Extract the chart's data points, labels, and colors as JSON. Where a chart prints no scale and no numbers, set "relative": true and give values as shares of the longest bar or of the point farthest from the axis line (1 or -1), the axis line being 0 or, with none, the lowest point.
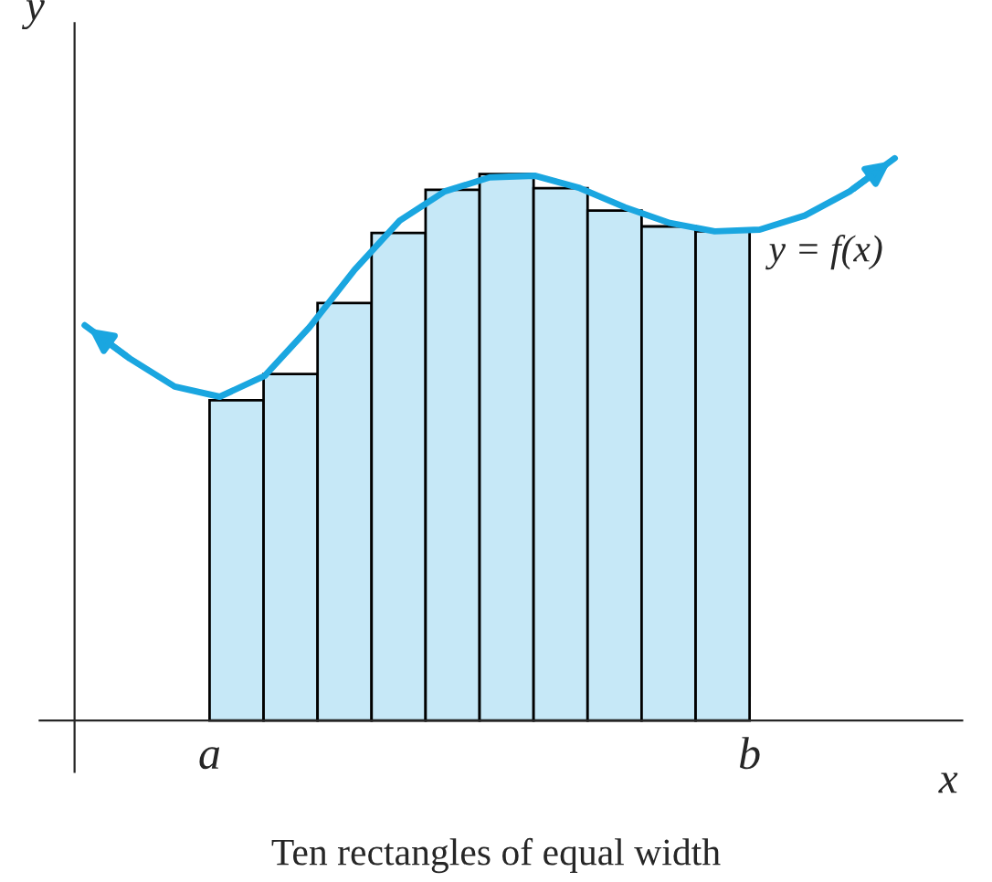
{
  "chart_data": [
    {
      "type": "bar",
      "relative": true,
      "title": "Ten rectangles of equal width",
      "xlabel": "x",
      "ylabel": "y",
      "color": "#c6e8f7",
      "categories": [
        null,
        null,
        null,
        null,
        null,
        null,
        null,
        null,
        null,
        null
      ],
      "annotations": [
        "a",
        "b"
      ],
      "values": [
        0.586,
        0.634,
        0.764,
        0.892,
        0.971,
        1.0,
        0.974,
        0.933,
        0.904,
        0.895
      ]
    },
    {
      "type": "line",
      "relative": true,
      "categories": [
        null,
        null,
        null,
        null,
        null,
        null,
        null,
        null,
        null,
        null,
        null,
        null,
        null,
        null,
        null,
        null,
        null,
        null,
        null
      ],
      "series": [
        {
          "name": "y = f(x)",
          "color": "#1aa6e0",
          "values": [
            0.703,
            0.644,
            0.594,
            0.576,
            0.613,
            0.7,
            0.802,
            0.889,
            0.941,
            0.966,
            0.969,
            0.947,
            0.913,
            0.885,
            0.87,
            0.873,
            0.898,
            0.941,
            1.0
          ]
        }
      ]
    }
  ]
}
